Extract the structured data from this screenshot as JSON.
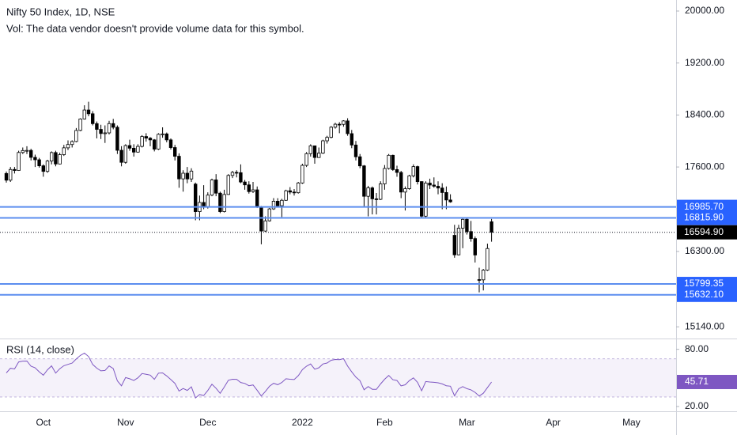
{
  "header": {
    "title": "Nifty 50 Index, 1D, NSE",
    "volume_note": "Vol: The data vendor doesn't provide volume data for this symbol."
  },
  "chart_data": [
    {
      "type": "candlestick",
      "categories": [
        null,
        null,
        null,
        null,
        null,
        null,
        null,
        null,
        null,
        "Oct",
        null,
        null,
        null,
        null,
        null,
        null,
        null,
        null,
        null,
        null,
        null,
        null,
        null,
        null,
        null,
        null,
        null,
        null,
        null,
        "Nov",
        null,
        null,
        null,
        null,
        null,
        null,
        null,
        null,
        null,
        null,
        null,
        null,
        null,
        null,
        null,
        null,
        null,
        null,
        null,
        "Dec",
        null,
        null,
        null,
        null,
        null,
        null,
        null,
        null,
        null,
        null,
        null,
        null,
        null,
        null,
        null,
        null,
        null,
        null,
        null,
        null,
        null,
        null,
        "2022",
        null,
        null,
        null,
        null,
        null,
        null,
        null,
        null,
        null,
        null,
        null,
        null,
        null,
        null,
        null,
        null,
        null,
        null,
        null,
        "Feb",
        null,
        null,
        null,
        null,
        null,
        null,
        null,
        null,
        null,
        null,
        null,
        null,
        null,
        null,
        null,
        null,
        null,
        null,
        null,
        "Mar",
        null,
        null,
        null,
        null,
        null,
        null,
        null,
        null,
        null,
        null,
        null,
        null,
        null,
        null,
        null,
        null,
        null,
        null,
        null,
        null,
        "Apr",
        null,
        null,
        null,
        null,
        null,
        null,
        null,
        null,
        null,
        null,
        null,
        null,
        null,
        null,
        null,
        null,
        null,
        null,
        "May"
      ],
      "open": [
        17500,
        17397,
        17562,
        17546,
        17823,
        17853,
        17855,
        17748,
        17711,
        17618,
        17532,
        17691,
        17822,
        17646,
        17790,
        17895,
        17946,
        17992,
        18162,
        18339,
        18477,
        18419,
        18267,
        18179,
        18115,
        18125,
        18268,
        18211,
        17857,
        17672,
        17930,
        17889,
        17829,
        17917,
        18069,
        18044,
        18017,
        17874,
        18103,
        18109,
        18017,
        17899,
        17765,
        17417,
        17504,
        17416,
        17337,
        16913,
        17054,
        16983,
        17167,
        17401,
        17197,
        16913,
        17177,
        17470,
        17517,
        17512,
        17369,
        17325,
        17221,
        17248,
        16985,
        16614,
        16771,
        16955,
        17073,
        17004,
        17087,
        17234,
        17214,
        17204,
        17354,
        17625,
        17805,
        17925,
        17746,
        17813,
        18003,
        18056,
        18212,
        18258,
        18256,
        18309,
        18113,
        17938,
        17757,
        17617,
        17149,
        17278,
        17110,
        17102,
        17340,
        17577,
        17780,
        17560,
        17516,
        17214,
        17266,
        17464,
        17606,
        17375,
        16843,
        17352,
        17322,
        17304,
        17276,
        17207,
        17092,
        16548,
        16248,
        16658,
        16794,
        16606,
        16498,
        15867,
        15863,
        16013,
        16757,
        null,
        null,
        null,
        null,
        null,
        null,
        null,
        null,
        null,
        null,
        null,
        null,
        null,
        null,
        null,
        null,
        null,
        null,
        null,
        null,
        null,
        null,
        null,
        null,
        null,
        null,
        null,
        null,
        null,
        null,
        null,
        null,
        null,
        null
      ],
      "high": [
        17530,
        17600,
        17600,
        17850,
        17900,
        17920,
        17880,
        17790,
        17740,
        17640,
        17710,
        17840,
        17850,
        17820,
        17940,
        18010,
        18010,
        18200,
        18350,
        18550,
        18604,
        18460,
        18300,
        18250,
        18240,
        18310,
        18340,
        18240,
        17920,
        17950,
        18020,
        17950,
        17950,
        18090,
        18120,
        18060,
        18030,
        18120,
        18210,
        18130,
        18040,
        17940,
        17810,
        17550,
        17600,
        17580,
        17360,
        17160,
        17320,
        17210,
        17420,
        17490,
        17220,
        17250,
        17490,
        17540,
        17550,
        17640,
        17400,
        17380,
        17370,
        17300,
        17000,
        16840,
        16970,
        17120,
        17120,
        17110,
        17250,
        17290,
        17260,
        17370,
        17650,
        17830,
        17950,
        17930,
        17900,
        18020,
        18080,
        18230,
        18280,
        18290,
        18320,
        18350,
        18170,
        18000,
        17800,
        17630,
        17310,
        17300,
        17200,
        17380,
        17630,
        17800,
        17790,
        17620,
        17540,
        17300,
        17480,
        17640,
        17620,
        17380,
        17380,
        17420,
        17440,
        17380,
        17350,
        17300,
        17180,
        16710,
        16710,
        16820,
        16820,
        16770,
        16530,
        16050,
        16030,
        16420,
        16800,
        null,
        null,
        null,
        null,
        null,
        null,
        null,
        null,
        null,
        null,
        null,
        null,
        null,
        null,
        null,
        null,
        null,
        null,
        null,
        null,
        null,
        null,
        null,
        null,
        null,
        null,
        null,
        null,
        null,
        null,
        null,
        null,
        null,
        null
      ],
      "low": [
        17360,
        17370,
        17500,
        17540,
        17800,
        17800,
        17700,
        17600,
        17590,
        17450,
        17510,
        17640,
        17610,
        17640,
        17770,
        17860,
        17900,
        17980,
        18150,
        18330,
        18380,
        18240,
        18040,
        18030,
        17970,
        18100,
        18180,
        17800,
        17610,
        17650,
        17850,
        17760,
        17820,
        17900,
        17990,
        17920,
        17840,
        17860,
        18050,
        17980,
        17870,
        17700,
        17280,
        17220,
        17350,
        17370,
        16780,
        16780,
        16950,
        16960,
        17150,
        17150,
        16890,
        16900,
        17170,
        17430,
        17440,
        17350,
        17250,
        17190,
        17200,
        16970,
        16410,
        16600,
        16760,
        16940,
        16980,
        16830,
        17080,
        17180,
        17160,
        17190,
        17340,
        17600,
        17760,
        17650,
        17740,
        17800,
        17960,
        18040,
        18190,
        18120,
        18220,
        18080,
        17890,
        17700,
        17580,
        16990,
        16840,
        16870,
        16870,
        17090,
        17250,
        17560,
        17540,
        17450,
        17120,
        16930,
        17250,
        17440,
        17330,
        16810,
        16830,
        17260,
        17280,
        17180,
        16950,
        16950,
        17050,
        16203,
        16240,
        16350,
        16560,
        16450,
        16130,
        15671,
        15700,
        16000,
        16450,
        null,
        null,
        null,
        null,
        null,
        null,
        null,
        null,
        null,
        null,
        null,
        null,
        null,
        null,
        null,
        null,
        null,
        null,
        null,
        null,
        null,
        null,
        null,
        null,
        null,
        null,
        null,
        null,
        null,
        null,
        null,
        null,
        null,
        null
      ],
      "close": [
        17397,
        17562,
        17546,
        17823,
        17853,
        17855,
        17748,
        17711,
        17618,
        17532,
        17691,
        17822,
        17646,
        17790,
        17895,
        17946,
        17992,
        18162,
        18339,
        18477,
        18419,
        18267,
        18179,
        18115,
        18125,
        18268,
        18211,
        17857,
        17672,
        17930,
        17889,
        17829,
        17917,
        18069,
        18044,
        18017,
        17874,
        18103,
        18109,
        18017,
        17899,
        17765,
        17417,
        17504,
        17416,
        17537,
        16913,
        17054,
        16983,
        17167,
        17401,
        17197,
        16913,
        17177,
        17470,
        17517,
        17512,
        17369,
        17325,
        17221,
        17248,
        16985,
        16614,
        16771,
        16955,
        17073,
        17004,
        17087,
        17234,
        17214,
        17204,
        17354,
        17625,
        17805,
        17925,
        17746,
        17813,
        18003,
        18056,
        18212,
        18258,
        18256,
        18309,
        18113,
        17938,
        17757,
        17617,
        17149,
        17278,
        17110,
        17102,
        17340,
        17577,
        17780,
        17560,
        17516,
        17214,
        17266,
        17464,
        17606,
        17375,
        16843,
        17352,
        17322,
        17304,
        17276,
        17207,
        17092,
        17063,
        16248,
        16658,
        16794,
        16606,
        16498,
        16245,
        15863,
        16013,
        16345,
        16594.9,
        null,
        null,
        null,
        null,
        null,
        null,
        null,
        null,
        null,
        null,
        null,
        null,
        null,
        null,
        null,
        null,
        null,
        null,
        null,
        null,
        null,
        null,
        null,
        null,
        null,
        null,
        null,
        null,
        null,
        null,
        null,
        null,
        null,
        null
      ],
      "up_color": "#ffffff",
      "down_color": "#000000",
      "wick_color": "#000000",
      "ylim": [
        14960,
        20170
      ],
      "yticks": [
        {
          "value": 20000,
          "label": "20000.00"
        },
        {
          "value": 19200,
          "label": "19200.00"
        },
        {
          "value": 18400,
          "label": "18400.00"
        },
        {
          "value": 17600,
          "label": "17600.00"
        },
        {
          "value": 16300,
          "label": "16300.00"
        },
        {
          "value": 15140,
          "label": "15140.00"
        }
      ],
      "grid": false,
      "levels": [
        {
          "value": 16985.7,
          "label": "16985.70"
        },
        {
          "value": 16815.9,
          "label": "16815.90"
        },
        {
          "value": 15799.35,
          "label": "15799.35"
        },
        {
          "value": 15632.1,
          "label": "15632.10"
        }
      ],
      "level_color": "#5b8def",
      "last_price": {
        "value": 16594.9,
        "label": "16594.90"
      }
    },
    {
      "type": "line",
      "title": "RSI (14, close)",
      "series": [
        {
          "color": "#7e57c2",
          "values": [
            55.2,
            60.1,
            59.4,
            66.8,
            67.6,
            67.7,
            62.3,
            60.6,
            56.4,
            52.8,
            58.5,
            62.6,
            55.1,
            59.6,
            62.8,
            64.2,
            65.5,
            69.8,
            73.6,
            76.0,
            72.4,
            64.1,
            60.2,
            57.4,
            57.8,
            62.5,
            59.8,
            46.9,
            41.7,
            50.3,
            49.1,
            47.3,
            50.1,
            54.6,
            53.8,
            52.9,
            48.5,
            55.0,
            55.2,
            52.1,
            48.3,
            44.3,
            36.2,
            38.9,
            36.9,
            40.6,
            28.9,
            32.6,
            31.5,
            36.8,
            43.4,
            39.1,
            33.8,
            40.4,
            47.5,
            48.6,
            48.5,
            45.2,
            44.2,
            41.8,
            42.6,
            37.1,
            31.0,
            35.8,
            41.2,
            44.4,
            42.9,
            45.2,
            49.1,
            48.6,
            48.3,
            52.3,
            58.6,
            62.3,
            64.6,
            59.1,
            60.6,
            64.6,
            65.6,
            68.5,
            69.3,
            69.2,
            70.2,
            62.4,
            56.3,
            50.8,
            47.1,
            37.6,
            41.0,
            38.1,
            38.0,
            43.6,
            48.6,
            52.6,
            48.1,
            47.3,
            41.6,
            42.8,
            47.1,
            50.0,
            45.4,
            36.5,
            46.2,
            45.7,
            45.4,
            44.9,
            43.7,
            41.8,
            41.3,
            31.2,
            38.6,
            40.9,
            38.7,
            37.5,
            34.8,
            31.0,
            33.9,
            39.8,
            45.71,
            null,
            null,
            null,
            null,
            null,
            null,
            null,
            null,
            null,
            null,
            null,
            null,
            null,
            null,
            null,
            null,
            null,
            null,
            null,
            null,
            null,
            null,
            null,
            null,
            null,
            null,
            null,
            null,
            null,
            null,
            null,
            null,
            null,
            null
          ]
        }
      ],
      "ylim": [
        15,
        88
      ],
      "yticks": [
        {
          "value": 80,
          "label": "80.00"
        },
        {
          "value": 20,
          "label": "20.00"
        }
      ],
      "band": [
        30,
        70
      ],
      "band_color": "#7e57c2",
      "last_value": {
        "value": 45.71,
        "label": "45.71"
      }
    }
  ]
}
